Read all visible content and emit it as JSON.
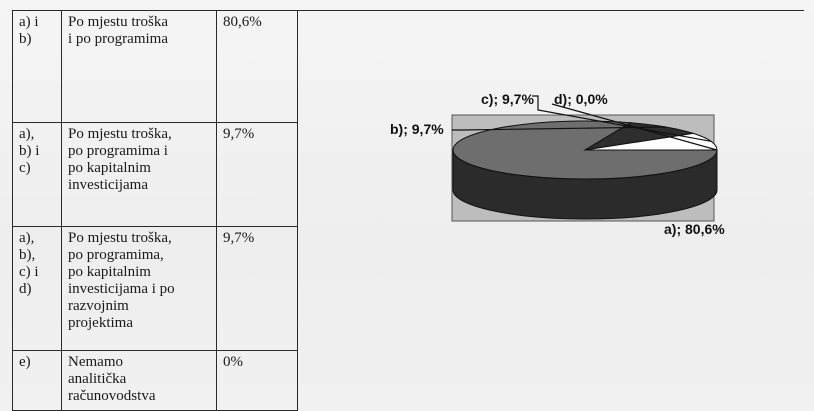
{
  "table": {
    "rows": [
      {
        "option": "a) i\nb)",
        "description": "Po mjestu troška\ni po programima",
        "percent": "80,6%"
      },
      {
        "option": "a),\nb) i\nc)",
        "description": "Po mjestu troška,\npo programima i\npo kapitalnim\ninvesticijama",
        "percent": "9,7%"
      },
      {
        "option": "a),\nb),\nc) i\nd)",
        "description": "Po mjestu troška,\npo programima,\npo kapitalnim\ninvesticijama i po\nrazvojnim\nprojektima",
        "percent": "9,7%"
      },
      {
        "option": "e)",
        "description": "Nemamo\nanalitička\nračunovodstva",
        "percent": "0%"
      }
    ]
  },
  "chart_data": {
    "type": "pie",
    "style": "3d",
    "slices": [
      {
        "label": "a); 80,6%",
        "category": "a)",
        "value": 80.6,
        "color": "#6e6e6e"
      },
      {
        "label": "b); 9,7%",
        "category": "b)",
        "value": 9.7,
        "color": "#2e2e2e"
      },
      {
        "label": "c); 9,7%",
        "category": "c)",
        "value": 9.7,
        "color": "#ffffff"
      },
      {
        "label": "d); 0,0%",
        "category": "d)",
        "value": 0.0,
        "color": "#ffffff"
      }
    ],
    "background": "#bdbdbd"
  }
}
